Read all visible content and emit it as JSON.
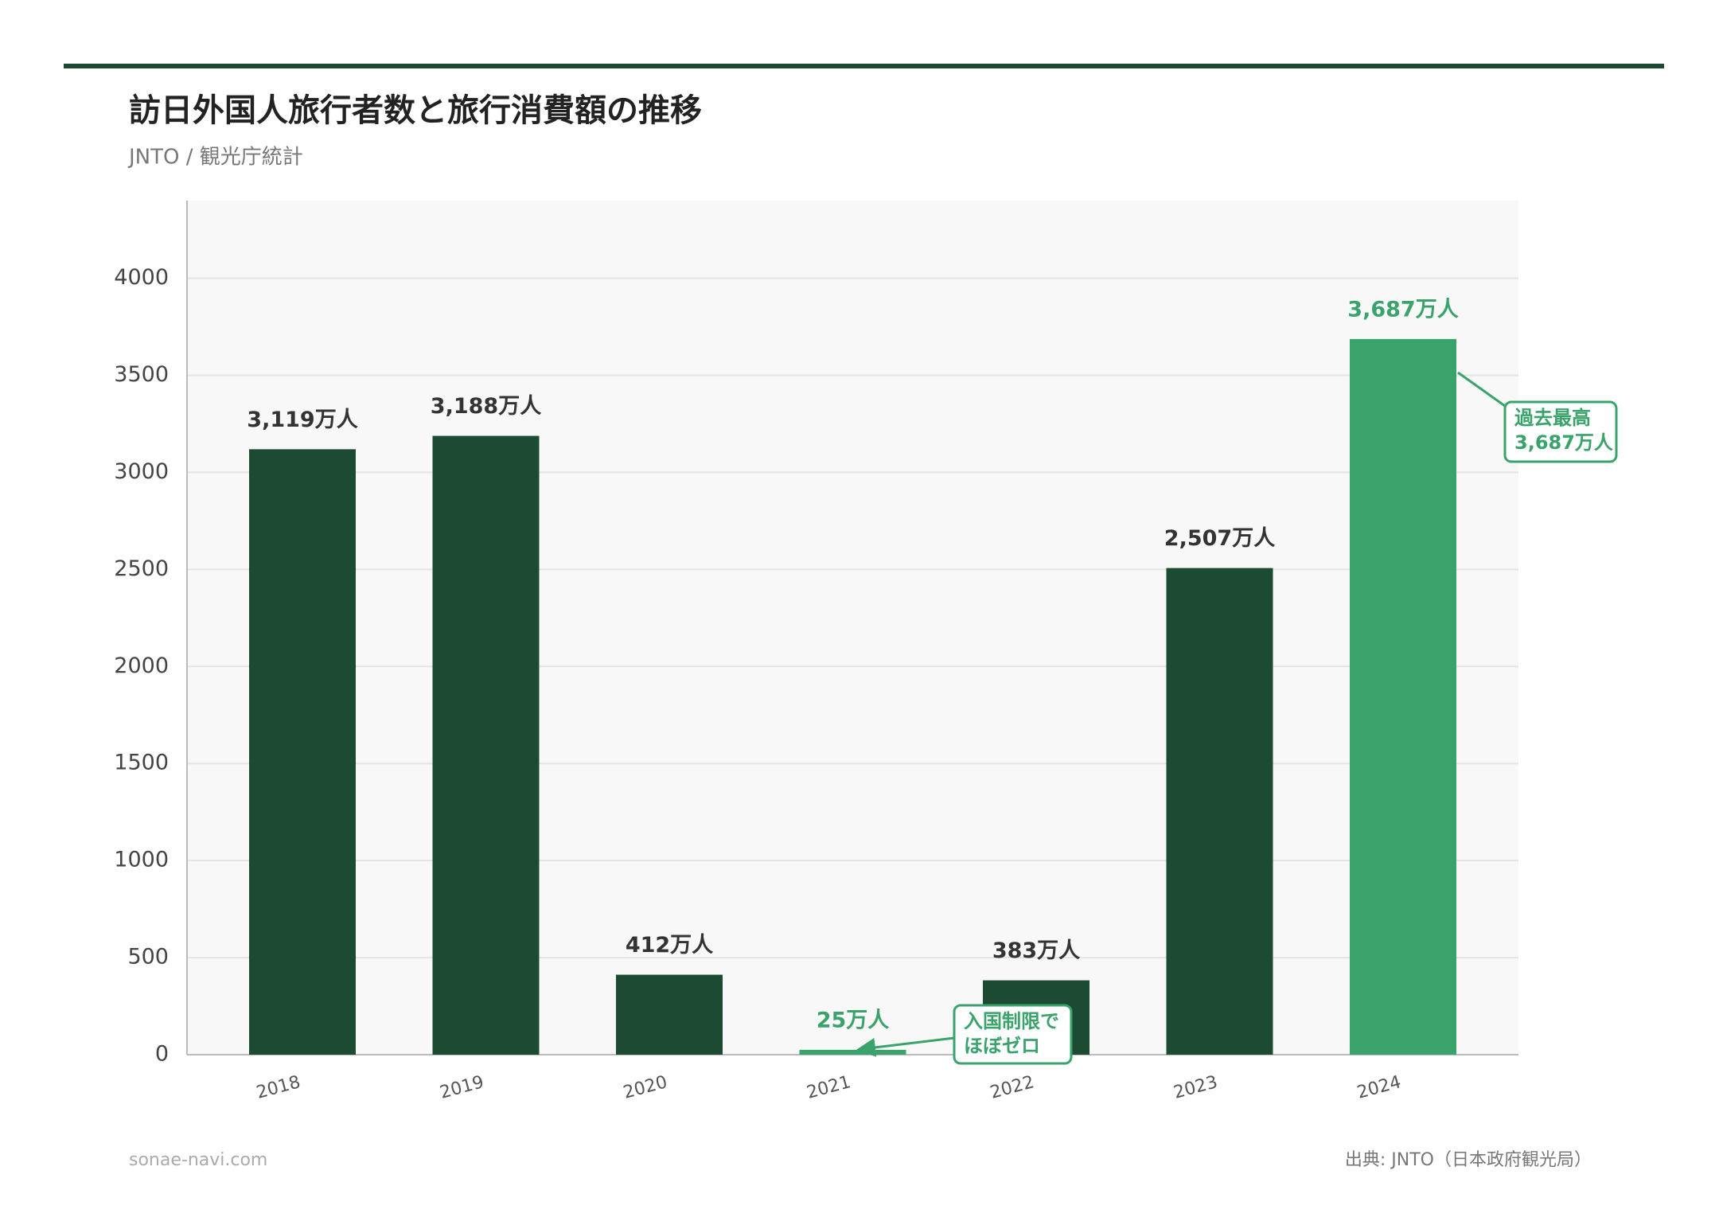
{
  "chart_data": {
    "type": "bar",
    "title": "訪日外国人旅行者数と旅行消費額の推移",
    "subtitle": "JNTO / 観光庁統計",
    "categories": [
      "2018",
      "2019",
      "2020",
      "2021",
      "2022",
      "2023",
      "2024"
    ],
    "values": [
      3119,
      3188,
      412,
      25,
      383,
      2507,
      3687
    ],
    "value_labels": [
      "3,119万人",
      "3,188万人",
      "412万人",
      "25万人",
      "383万人",
      "2,507万人",
      "3,687万人"
    ],
    "color": "#1c4a33",
    "colors": [
      "#1c4a33",
      "#1c4a33",
      "#1c4a33",
      "#3aa36b",
      "#1c4a33",
      "#1c4a33",
      "#3aa36b"
    ],
    "ylim": [
      0,
      4400
    ],
    "yticks": [
      0,
      500,
      1000,
      1500,
      2000,
      2500,
      3000,
      3500,
      4000
    ],
    "grid": true,
    "annotations": [
      {
        "lines": [
          "過去最高",
          "3,687万人"
        ],
        "target": 6
      },
      {
        "lines": [
          "入国制限で",
          "ほぼゼロ"
        ],
        "target": 3
      }
    ],
    "footer_left": "sonae-navi.com",
    "source": "出典: JNTO（日本政府観光局）"
  }
}
